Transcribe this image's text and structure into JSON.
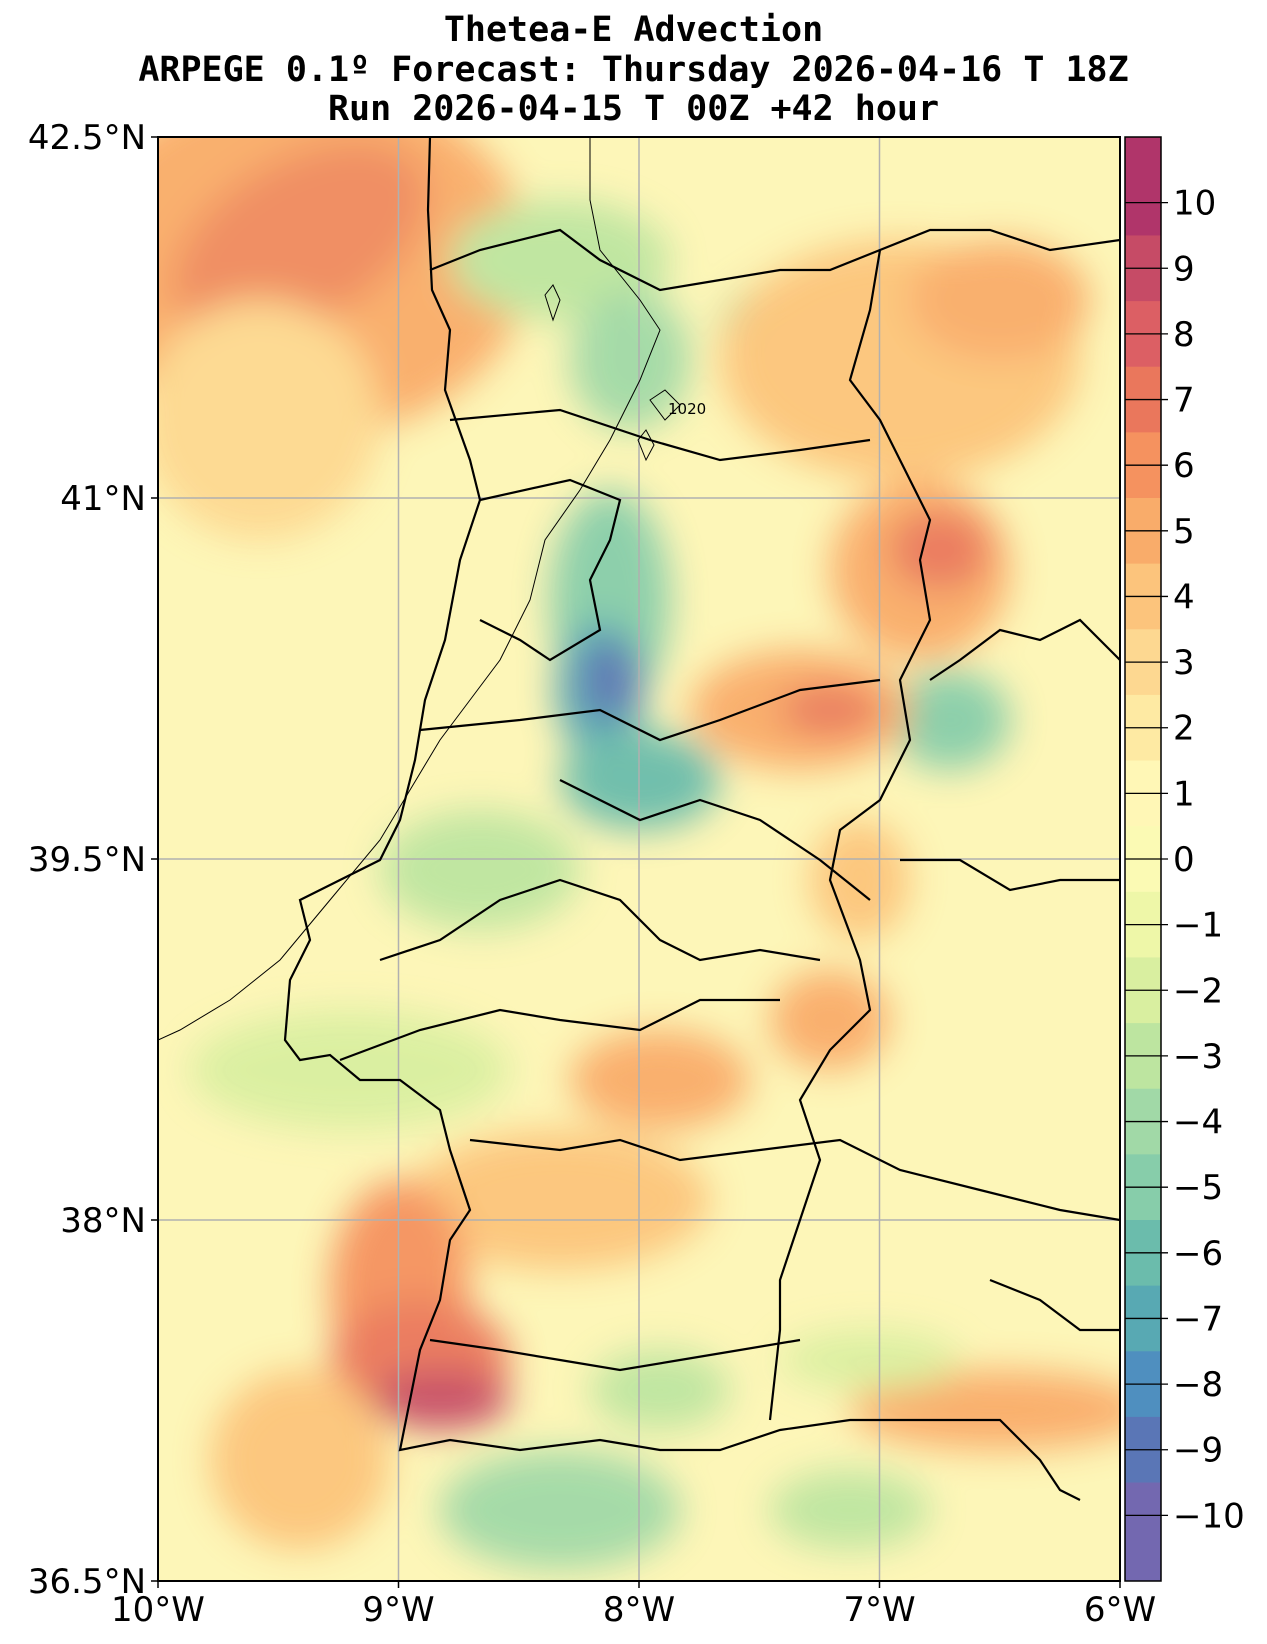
{
  "title": {
    "line1": "Thetea-E Advection",
    "line2": "ARPEGE 0.1º Forecast: Thursday 2026-04-16 T 18Z",
    "line3": "Run 2026-04-15 T 00Z +42 hour"
  },
  "map": {
    "lon_range": [
      -10,
      -6
    ],
    "lat_range": [
      36.5,
      42.5
    ],
    "lon_ticks": [
      {
        "v": -10,
        "label": "10°W"
      },
      {
        "v": -9,
        "label": "9°W"
      },
      {
        "v": -8,
        "label": "8°W"
      },
      {
        "v": -7,
        "label": "7°W"
      },
      {
        "v": -6,
        "label": "6°W"
      }
    ],
    "lat_ticks": [
      {
        "v": 42.5,
        "label": "42.5°N"
      },
      {
        "v": 41,
        "label": "41°N"
      },
      {
        "v": 39.5,
        "label": "39.5°N"
      },
      {
        "v": 38,
        "label": "38°N"
      },
      {
        "v": 36.5,
        "label": "36.5°N"
      }
    ],
    "isobar_label": "1020",
    "background_color": "#fdf6b8"
  },
  "colorbar": {
    "levels": [
      10,
      9,
      8,
      7,
      6,
      5,
      4,
      3,
      2,
      1,
      0,
      -1,
      -2,
      -3,
      -4,
      -5,
      -6,
      -7,
      -8,
      -9,
      -10
    ],
    "labels": [
      "10",
      "9",
      "8",
      "7",
      "6",
      "5",
      "4",
      "3",
      "2",
      "1",
      "0",
      "−1",
      "−2",
      "−3",
      "−4",
      "−5",
      "−6",
      "−7",
      "−8",
      "−9",
      "−10"
    ],
    "colors": [
      "#b0356a",
      "#c64b66",
      "#dc5f64",
      "#ea775c",
      "#f5925f",
      "#f9ac6a",
      "#fcc47c",
      "#fdd891",
      "#feeaa3",
      "#fff7b6",
      "#fbfab4",
      "#eef7a8",
      "#d9efa0",
      "#bde5a0",
      "#a1d9a7",
      "#87cdaa",
      "#6bbcac",
      "#58a9b3",
      "#4f8fbf",
      "#5a76b6",
      "#7368b0"
    ]
  },
  "features": [
    {
      "name": "warm-maximum-offshore-north",
      "lon": -9.35,
      "lat": 42.2,
      "value": 5
    },
    {
      "name": "warm-maximum-offshore-southwest",
      "lon": -8.8,
      "lat": 37.25,
      "value": 9
    },
    {
      "name": "cold-minimum-central",
      "lon": -8.15,
      "lat": 40.3,
      "value": -9
    },
    {
      "name": "cold-minimum-south-coast",
      "lon": -8.4,
      "lat": 36.75,
      "value": -5
    }
  ]
}
